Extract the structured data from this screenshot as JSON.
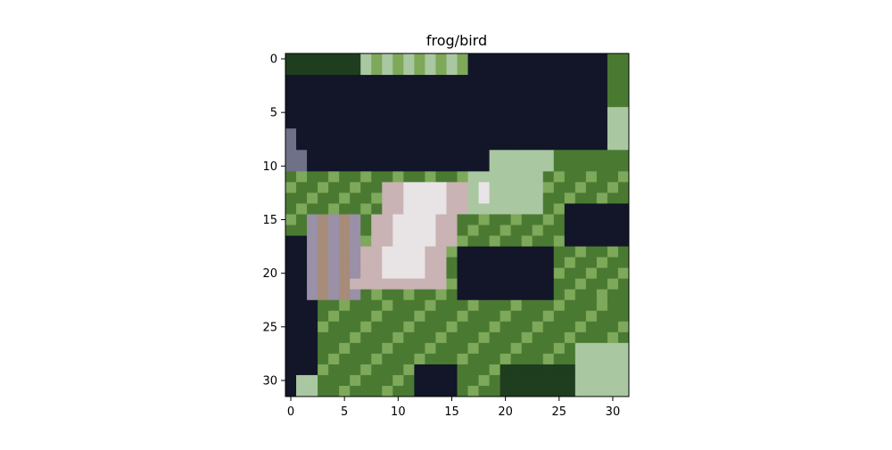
{
  "chart_data": {
    "type": "heatmap",
    "title": "frog/bird",
    "xlabel": "",
    "ylabel": "",
    "image_size": [
      32,
      32
    ],
    "xlim": [
      -0.5,
      31.5
    ],
    "ylim": [
      31.5,
      -0.5
    ],
    "x_ticks": [
      0,
      5,
      10,
      15,
      20,
      25,
      30
    ],
    "y_ticks": [
      0,
      5,
      10,
      15,
      20,
      25,
      30
    ],
    "x_tick_labels": [
      "0",
      "5",
      "10",
      "15",
      "20",
      "25",
      "30"
    ],
    "y_tick_labels": [
      "0",
      "5",
      "10",
      "15",
      "20",
      "25",
      "30"
    ],
    "grid": false,
    "palette": {
      "navy": "#121628",
      "dark_green": "#1f3d1f",
      "green": "#4a7a32",
      "light_green": "#7ea85a",
      "pale_green": "#a9c7a0",
      "white": "#e8e4e6",
      "pink": "#c9b3b4",
      "tan": "#a68c79",
      "gray": "#6f7188",
      "lavender": "#9a90a8"
    }
  }
}
